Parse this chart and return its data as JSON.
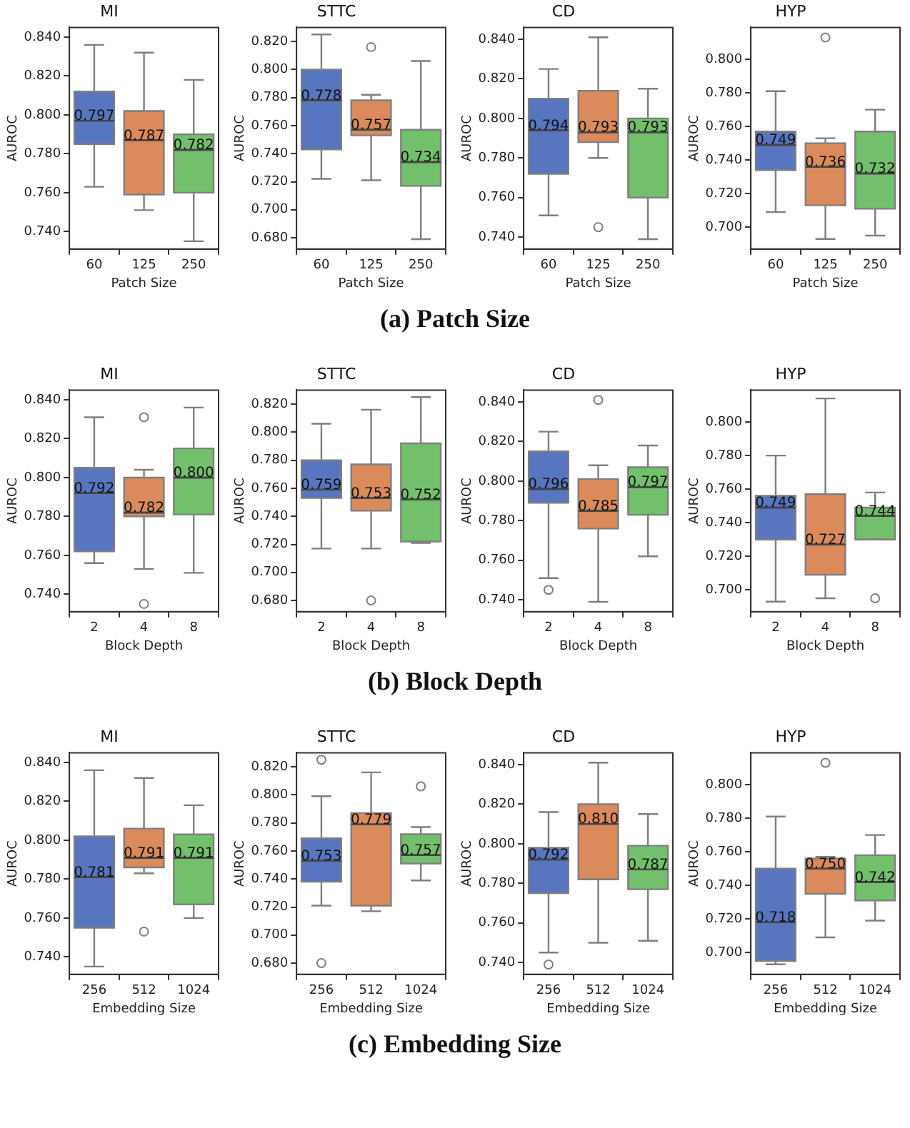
{
  "chart_data": [
    {
      "type": "box",
      "title": "MI",
      "xlabel": "Patch Size",
      "ylabel": "AUROC",
      "categories": [
        "60",
        "125",
        "250"
      ],
      "colors": [
        "#5875c0",
        "#da8a5b",
        "#72c06b"
      ],
      "ylim": [
        0.731,
        0.845
      ],
      "yticks": [
        {
          "value": 0.74,
          "label": "0.740"
        },
        {
          "value": 0.76,
          "label": "0.760"
        },
        {
          "value": 0.78,
          "label": "0.780"
        },
        {
          "value": 0.8,
          "label": "0.800"
        },
        {
          "value": 0.82,
          "label": "0.820"
        },
        {
          "value": 0.84,
          "label": "0.840"
        }
      ],
      "value_labels": [
        "0.797",
        "0.787",
        "0.782"
      ],
      "annotations": [
        "(a) Patch Size"
      ],
      "boxes": [
        {
          "low": 0.763,
          "q1": 0.785,
          "median": 0.797,
          "q3": 0.812,
          "high": 0.836
        },
        {
          "low": 0.751,
          "q1": 0.759,
          "median": 0.787,
          "q3": 0.802,
          "high": 0.832
        },
        {
          "low": 0.735,
          "q1": 0.76,
          "median": 0.782,
          "q3": 0.79,
          "high": 0.818
        }
      ]
    },
    {
      "type": "box",
      "title": "STTC",
      "xlabel": "Patch Size",
      "ylabel": "AUROC",
      "categories": [
        "60",
        "125",
        "250"
      ],
      "colors": [
        "#5875c0",
        "#da8a5b",
        "#72c06b"
      ],
      "ylim": [
        0.672,
        0.83
      ],
      "yticks": [
        {
          "value": 0.68,
          "label": "0.680"
        },
        {
          "value": 0.7,
          "label": "0.700"
        },
        {
          "value": 0.72,
          "label": "0.720"
        },
        {
          "value": 0.74,
          "label": "0.740"
        },
        {
          "value": 0.76,
          "label": "0.760"
        },
        {
          "value": 0.78,
          "label": "0.780"
        },
        {
          "value": 0.8,
          "label": "0.800"
        },
        {
          "value": 0.82,
          "label": "0.820"
        }
      ],
      "value_labels": [
        "0.778",
        "0.757",
        "0.734"
      ],
      "boxes": [
        {
          "low": 0.722,
          "q1": 0.743,
          "median": 0.778,
          "q3": 0.8,
          "high": 0.825
        },
        {
          "low": 0.721,
          "q1": 0.753,
          "median": 0.757,
          "q3": 0.778,
          "high": 0.782,
          "outliers": [
            0.816
          ]
        },
        {
          "low": 0.679,
          "q1": 0.717,
          "median": 0.734,
          "q3": 0.757,
          "high": 0.806
        }
      ]
    },
    {
      "type": "box",
      "title": "CD",
      "xlabel": "Patch Size",
      "ylabel": "AUROC",
      "categories": [
        "60",
        "125",
        "250"
      ],
      "colors": [
        "#5875c0",
        "#da8a5b",
        "#72c06b"
      ],
      "ylim": [
        0.734,
        0.846
      ],
      "yticks": [
        {
          "value": 0.74,
          "label": "0.740"
        },
        {
          "value": 0.76,
          "label": "0.760"
        },
        {
          "value": 0.78,
          "label": "0.780"
        },
        {
          "value": 0.8,
          "label": "0.800"
        },
        {
          "value": 0.82,
          "label": "0.820"
        },
        {
          "value": 0.84,
          "label": "0.840"
        }
      ],
      "value_labels": [
        "0.794",
        "0.793",
        "0.793"
      ],
      "boxes": [
        {
          "low": 0.751,
          "q1": 0.772,
          "median": 0.794,
          "q3": 0.81,
          "high": 0.825
        },
        {
          "low": 0.78,
          "q1": 0.788,
          "median": 0.793,
          "q3": 0.814,
          "high": 0.841,
          "outliers": [
            0.745
          ]
        },
        {
          "low": 0.739,
          "q1": 0.76,
          "median": 0.793,
          "q3": 0.8,
          "high": 0.815
        }
      ]
    },
    {
      "type": "box",
      "title": "HYP",
      "xlabel": "Patch Size",
      "ylabel": "AUROC",
      "categories": [
        "60",
        "125",
        "250"
      ],
      "colors": [
        "#5875c0",
        "#da8a5b",
        "#72c06b"
      ],
      "ylim": [
        0.687,
        0.819
      ],
      "yticks": [
        {
          "value": 0.7,
          "label": "0.700"
        },
        {
          "value": 0.72,
          "label": "0.720"
        },
        {
          "value": 0.74,
          "label": "0.740"
        },
        {
          "value": 0.76,
          "label": "0.760"
        },
        {
          "value": 0.78,
          "label": "0.780"
        },
        {
          "value": 0.8,
          "label": "0.800"
        }
      ],
      "value_labels": [
        "0.749",
        "0.736",
        "0.732"
      ],
      "boxes": [
        {
          "low": 0.709,
          "q1": 0.734,
          "median": 0.749,
          "q3": 0.757,
          "high": 0.781
        },
        {
          "low": 0.693,
          "q1": 0.713,
          "median": 0.736,
          "q3": 0.75,
          "high": 0.753,
          "outliers": [
            0.813
          ]
        },
        {
          "low": 0.695,
          "q1": 0.711,
          "median": 0.732,
          "q3": 0.757,
          "high": 0.77
        }
      ]
    },
    {
      "type": "box",
      "title": "MI",
      "xlabel": "Block Depth",
      "ylabel": "AUROC",
      "categories": [
        "2",
        "4",
        "8"
      ],
      "colors": [
        "#5875c0",
        "#da8a5b",
        "#72c06b"
      ],
      "ylim": [
        0.731,
        0.845
      ],
      "yticks": [
        {
          "value": 0.74,
          "label": "0.740"
        },
        {
          "value": 0.76,
          "label": "0.760"
        },
        {
          "value": 0.78,
          "label": "0.780"
        },
        {
          "value": 0.8,
          "label": "0.800"
        },
        {
          "value": 0.82,
          "label": "0.820"
        },
        {
          "value": 0.84,
          "label": "0.840"
        }
      ],
      "value_labels": [
        "0.792",
        "0.782",
        "0.800"
      ],
      "annotations": [
        "(b) Block Depth"
      ],
      "boxes": [
        {
          "low": 0.756,
          "q1": 0.762,
          "median": 0.792,
          "q3": 0.805,
          "high": 0.831
        },
        {
          "low": 0.753,
          "q1": 0.78,
          "median": 0.782,
          "q3": 0.8,
          "high": 0.804,
          "outliers": [
            0.831,
            0.735
          ]
        },
        {
          "low": 0.751,
          "q1": 0.781,
          "median": 0.8,
          "q3": 0.815,
          "high": 0.836
        }
      ]
    },
    {
      "type": "box",
      "title": "STTC",
      "xlabel": "Block Depth",
      "ylabel": "AUROC",
      "categories": [
        "2",
        "4",
        "8"
      ],
      "colors": [
        "#5875c0",
        "#da8a5b",
        "#72c06b"
      ],
      "ylim": [
        0.672,
        0.83
      ],
      "yticks": [
        {
          "value": 0.68,
          "label": "0.680"
        },
        {
          "value": 0.7,
          "label": "0.700"
        },
        {
          "value": 0.72,
          "label": "0.720"
        },
        {
          "value": 0.74,
          "label": "0.740"
        },
        {
          "value": 0.76,
          "label": "0.760"
        },
        {
          "value": 0.78,
          "label": "0.780"
        },
        {
          "value": 0.8,
          "label": "0.800"
        },
        {
          "value": 0.82,
          "label": "0.820"
        }
      ],
      "value_labels": [
        "0.759",
        "0.753",
        "0.752"
      ],
      "boxes": [
        {
          "low": 0.717,
          "q1": 0.753,
          "median": 0.759,
          "q3": 0.78,
          "high": 0.806
        },
        {
          "low": 0.717,
          "q1": 0.744,
          "median": 0.753,
          "q3": 0.777,
          "high": 0.816,
          "outliers": [
            0.68
          ]
        },
        {
          "low": 0.721,
          "q1": 0.722,
          "median": 0.752,
          "q3": 0.792,
          "high": 0.825
        }
      ]
    },
    {
      "type": "box",
      "title": "CD",
      "xlabel": "Block Depth",
      "ylabel": "AUROC",
      "categories": [
        "2",
        "4",
        "8"
      ],
      "colors": [
        "#5875c0",
        "#da8a5b",
        "#72c06b"
      ],
      "ylim": [
        0.734,
        0.846
      ],
      "yticks": [
        {
          "value": 0.74,
          "label": "0.740"
        },
        {
          "value": 0.76,
          "label": "0.760"
        },
        {
          "value": 0.78,
          "label": "0.780"
        },
        {
          "value": 0.8,
          "label": "0.800"
        },
        {
          "value": 0.82,
          "label": "0.820"
        },
        {
          "value": 0.84,
          "label": "0.840"
        }
      ],
      "value_labels": [
        "0.796",
        "0.785",
        "0.797"
      ],
      "boxes": [
        {
          "low": 0.751,
          "q1": 0.789,
          "median": 0.796,
          "q3": 0.815,
          "high": 0.825,
          "outliers": [
            0.745
          ]
        },
        {
          "low": 0.739,
          "q1": 0.776,
          "median": 0.785,
          "q3": 0.801,
          "high": 0.808,
          "outliers": [
            0.841
          ]
        },
        {
          "low": 0.762,
          "q1": 0.783,
          "median": 0.797,
          "q3": 0.807,
          "high": 0.818
        }
      ]
    },
    {
      "type": "box",
      "title": "HYP",
      "xlabel": "Block Depth",
      "ylabel": "AUROC",
      "categories": [
        "2",
        "4",
        "8"
      ],
      "colors": [
        "#5875c0",
        "#da8a5b",
        "#72c06b"
      ],
      "ylim": [
        0.687,
        0.819
      ],
      "yticks": [
        {
          "value": 0.7,
          "label": "0.700"
        },
        {
          "value": 0.72,
          "label": "0.720"
        },
        {
          "value": 0.74,
          "label": "0.740"
        },
        {
          "value": 0.76,
          "label": "0.760"
        },
        {
          "value": 0.78,
          "label": "0.780"
        },
        {
          "value": 0.8,
          "label": "0.800"
        }
      ],
      "value_labels": [
        "0.749",
        "0.727",
        "0.744"
      ],
      "boxes": [
        {
          "low": 0.693,
          "q1": 0.73,
          "median": 0.749,
          "q3": 0.756,
          "high": 0.78
        },
        {
          "low": 0.695,
          "q1": 0.709,
          "median": 0.727,
          "q3": 0.757,
          "high": 0.814
        },
        {
          "low": 0.73,
          "q1": 0.73,
          "median": 0.744,
          "q3": 0.749,
          "high": 0.758,
          "outliers": [
            0.695
          ]
        }
      ]
    },
    {
      "type": "box",
      "title": "MI",
      "xlabel": "Embedding Size",
      "ylabel": "AUROC",
      "categories": [
        "256",
        "512",
        "1024"
      ],
      "colors": [
        "#5875c0",
        "#da8a5b",
        "#72c06b"
      ],
      "ylim": [
        0.731,
        0.845
      ],
      "yticks": [
        {
          "value": 0.74,
          "label": "0.740"
        },
        {
          "value": 0.76,
          "label": "0.760"
        },
        {
          "value": 0.78,
          "label": "0.780"
        },
        {
          "value": 0.8,
          "label": "0.800"
        },
        {
          "value": 0.82,
          "label": "0.820"
        },
        {
          "value": 0.84,
          "label": "0.840"
        }
      ],
      "value_labels": [
        "0.781",
        "0.791",
        "0.791"
      ],
      "annotations": [
        "(c) Embedding Size"
      ],
      "boxes": [
        {
          "low": 0.735,
          "q1": 0.755,
          "median": 0.781,
          "q3": 0.802,
          "high": 0.836
        },
        {
          "low": 0.783,
          "q1": 0.786,
          "median": 0.791,
          "q3": 0.806,
          "high": 0.832,
          "outliers": [
            0.753
          ]
        },
        {
          "low": 0.76,
          "q1": 0.767,
          "median": 0.791,
          "q3": 0.803,
          "high": 0.818
        }
      ]
    },
    {
      "type": "box",
      "title": "STTC",
      "xlabel": "Embedding Size",
      "ylabel": "AUROC",
      "categories": [
        "256",
        "512",
        "1024"
      ],
      "colors": [
        "#5875c0",
        "#da8a5b",
        "#72c06b"
      ],
      "ylim": [
        0.672,
        0.83
      ],
      "yticks": [
        {
          "value": 0.68,
          "label": "0.680"
        },
        {
          "value": 0.7,
          "label": "0.700"
        },
        {
          "value": 0.72,
          "label": "0.720"
        },
        {
          "value": 0.74,
          "label": "0.740"
        },
        {
          "value": 0.76,
          "label": "0.760"
        },
        {
          "value": 0.78,
          "label": "0.780"
        },
        {
          "value": 0.8,
          "label": "0.800"
        },
        {
          "value": 0.82,
          "label": "0.820"
        }
      ],
      "value_labels": [
        "0.753",
        "0.779",
        "0.757"
      ],
      "boxes": [
        {
          "low": 0.721,
          "q1": 0.738,
          "median": 0.753,
          "q3": 0.769,
          "high": 0.799,
          "outliers": [
            0.825,
            0.68
          ]
        },
        {
          "low": 0.717,
          "q1": 0.721,
          "median": 0.779,
          "q3": 0.787,
          "high": 0.816
        },
        {
          "low": 0.739,
          "q1": 0.751,
          "median": 0.757,
          "q3": 0.772,
          "high": 0.777,
          "outliers": [
            0.806
          ]
        }
      ]
    },
    {
      "type": "box",
      "title": "CD",
      "xlabel": "Embedding Size",
      "ylabel": "AUROC",
      "categories": [
        "256",
        "512",
        "1024"
      ],
      "colors": [
        "#5875c0",
        "#da8a5b",
        "#72c06b"
      ],
      "ylim": [
        0.734,
        0.846
      ],
      "yticks": [
        {
          "value": 0.74,
          "label": "0.740"
        },
        {
          "value": 0.76,
          "label": "0.760"
        },
        {
          "value": 0.78,
          "label": "0.780"
        },
        {
          "value": 0.8,
          "label": "0.800"
        },
        {
          "value": 0.82,
          "label": "0.820"
        },
        {
          "value": 0.84,
          "label": "0.840"
        }
      ],
      "value_labels": [
        "0.792",
        "0.810",
        "0.787"
      ],
      "boxes": [
        {
          "low": 0.745,
          "q1": 0.775,
          "median": 0.792,
          "q3": 0.798,
          "high": 0.816,
          "outliers": [
            0.739
          ]
        },
        {
          "low": 0.75,
          "q1": 0.782,
          "median": 0.81,
          "q3": 0.82,
          "high": 0.841
        },
        {
          "low": 0.751,
          "q1": 0.777,
          "median": 0.787,
          "q3": 0.799,
          "high": 0.815
        }
      ]
    },
    {
      "type": "box",
      "title": "HYP",
      "xlabel": "Embedding Size",
      "ylabel": "AUROC",
      "categories": [
        "256",
        "512",
        "1024"
      ],
      "colors": [
        "#5875c0",
        "#da8a5b",
        "#72c06b"
      ],
      "ylim": [
        0.687,
        0.819
      ],
      "yticks": [
        {
          "value": 0.7,
          "label": "0.700"
        },
        {
          "value": 0.72,
          "label": "0.720"
        },
        {
          "value": 0.74,
          "label": "0.740"
        },
        {
          "value": 0.76,
          "label": "0.760"
        },
        {
          "value": 0.78,
          "label": "0.780"
        },
        {
          "value": 0.8,
          "label": "0.800"
        }
      ],
      "value_labels": [
        "0.718",
        "0.750",
        "0.742"
      ],
      "boxes": [
        {
          "low": 0.693,
          "q1": 0.695,
          "median": 0.718,
          "q3": 0.75,
          "high": 0.781
        },
        {
          "low": 0.709,
          "q1": 0.735,
          "median": 0.75,
          "q3": 0.756,
          "high": 0.757,
          "outliers": [
            0.813
          ]
        },
        {
          "low": 0.719,
          "q1": 0.731,
          "median": 0.742,
          "q3": 0.758,
          "high": 0.77
        }
      ]
    }
  ]
}
